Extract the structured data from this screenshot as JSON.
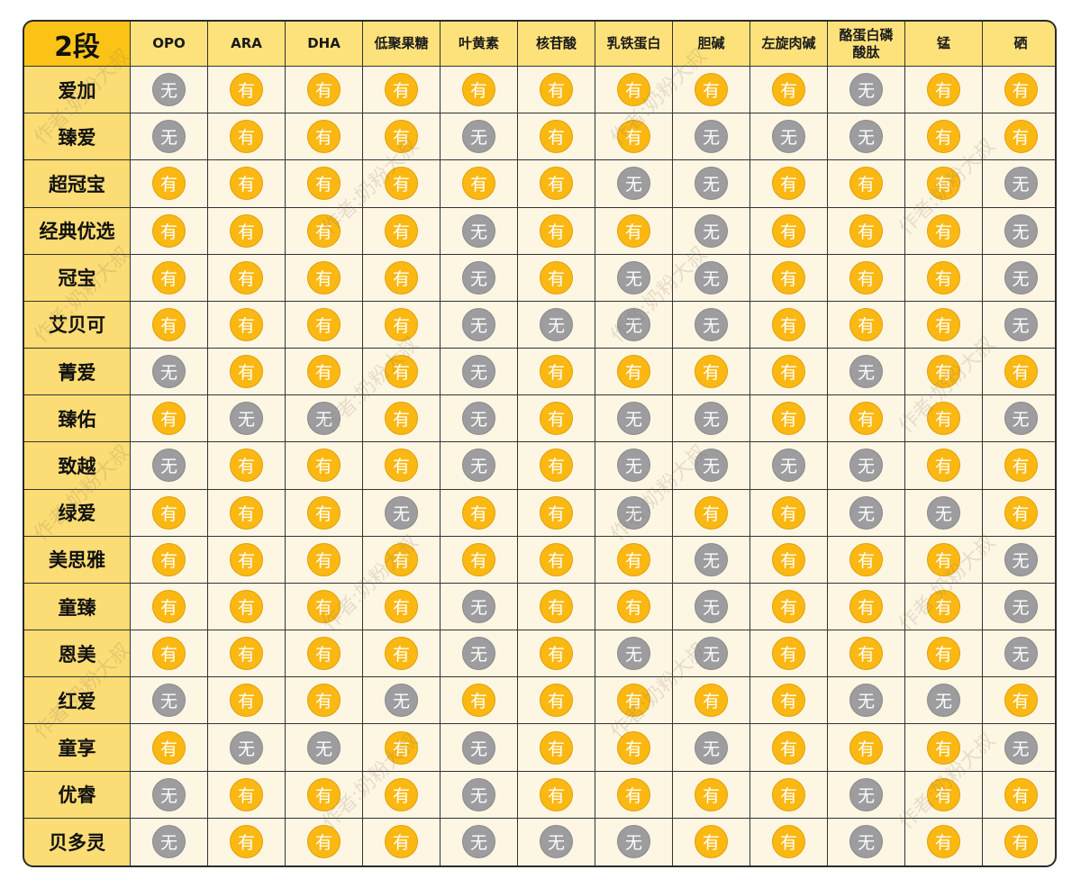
{
  "title": "2段",
  "columns": [
    "OPO",
    "ARA",
    "DHA",
    "低聚果糖",
    "叶黄素",
    "核苷酸",
    "乳铁蛋白",
    "胆碱",
    "左旋肉碱",
    "酪蛋白磷酸肽",
    "锰",
    "硒"
  ],
  "legend": {
    "yes": "有",
    "no": "无"
  },
  "colors": {
    "yes": "#fbb813",
    "no": "#9d9da0",
    "header": "#fde27c",
    "corner": "#fbc316",
    "cell": "#fdf6e3"
  },
  "watermark": "作者:奶粉大叔",
  "rows": [
    {
      "name": "爱加",
      "values": [
        "无",
        "有",
        "有",
        "有",
        "有",
        "有",
        "有",
        "有",
        "有",
        "无",
        "有",
        "有"
      ]
    },
    {
      "name": "臻爱",
      "values": [
        "无",
        "有",
        "有",
        "有",
        "无",
        "有",
        "有",
        "无",
        "无",
        "无",
        "有",
        "有"
      ]
    },
    {
      "name": "超冠宝",
      "values": [
        "有",
        "有",
        "有",
        "有",
        "有",
        "有",
        "无",
        "无",
        "有",
        "有",
        "有",
        "无"
      ]
    },
    {
      "name": "经典优选",
      "values": [
        "有",
        "有",
        "有",
        "有",
        "无",
        "有",
        "有",
        "无",
        "有",
        "有",
        "有",
        "无"
      ]
    },
    {
      "name": "冠宝",
      "values": [
        "有",
        "有",
        "有",
        "有",
        "无",
        "有",
        "无",
        "无",
        "有",
        "有",
        "有",
        "无"
      ]
    },
    {
      "name": "艾贝可",
      "values": [
        "有",
        "有",
        "有",
        "有",
        "无",
        "无",
        "无",
        "无",
        "有",
        "有",
        "有",
        "无"
      ]
    },
    {
      "name": "菁爱",
      "values": [
        "无",
        "有",
        "有",
        "有",
        "无",
        "有",
        "有",
        "有",
        "有",
        "无",
        "有",
        "有"
      ]
    },
    {
      "name": "臻佑",
      "values": [
        "有",
        "无",
        "无",
        "有",
        "无",
        "有",
        "无",
        "无",
        "有",
        "有",
        "有",
        "无"
      ]
    },
    {
      "name": "致越",
      "values": [
        "无",
        "有",
        "有",
        "有",
        "无",
        "有",
        "无",
        "无",
        "无",
        "无",
        "有",
        "有"
      ]
    },
    {
      "name": "绿爱",
      "values": [
        "有",
        "有",
        "有",
        "无",
        "有",
        "有",
        "无",
        "有",
        "有",
        "无",
        "无",
        "有"
      ]
    },
    {
      "name": "美思雅",
      "values": [
        "有",
        "有",
        "有",
        "有",
        "有",
        "有",
        "有",
        "无",
        "有",
        "有",
        "有",
        "无"
      ]
    },
    {
      "name": "童臻",
      "values": [
        "有",
        "有",
        "有",
        "有",
        "无",
        "有",
        "有",
        "无",
        "有",
        "有",
        "有",
        "无"
      ]
    },
    {
      "name": "恩美",
      "values": [
        "有",
        "有",
        "有",
        "有",
        "无",
        "有",
        "无",
        "无",
        "有",
        "有",
        "有",
        "无"
      ]
    },
    {
      "name": "红爱",
      "values": [
        "无",
        "有",
        "有",
        "无",
        "有",
        "有",
        "有",
        "有",
        "有",
        "无",
        "无",
        "有"
      ]
    },
    {
      "name": "童享",
      "values": [
        "有",
        "无",
        "无",
        "有",
        "无",
        "有",
        "有",
        "无",
        "有",
        "有",
        "有",
        "无"
      ]
    },
    {
      "name": "优睿",
      "values": [
        "无",
        "有",
        "有",
        "有",
        "无",
        "有",
        "有",
        "有",
        "有",
        "无",
        "有",
        "有"
      ]
    },
    {
      "name": "贝多灵",
      "values": [
        "无",
        "有",
        "有",
        "有",
        "无",
        "无",
        "无",
        "有",
        "有",
        "无",
        "有",
        "有"
      ]
    }
  ]
}
